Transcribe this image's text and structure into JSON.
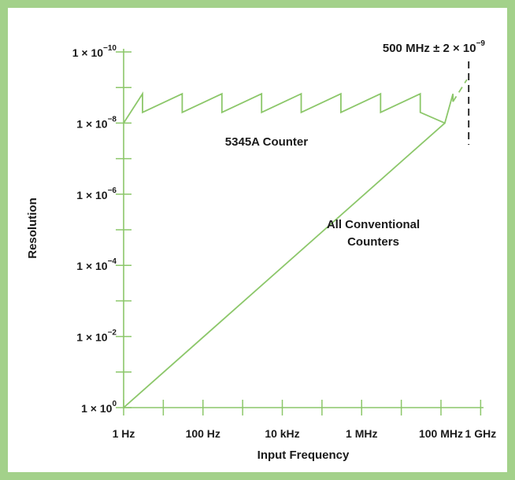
{
  "colors": {
    "frame": "#a3d18a",
    "plot_line": "#8cc76a",
    "text": "#1a1a1a",
    "marker": "#1a1a1a"
  },
  "chart_data": {
    "type": "line",
    "title": "",
    "xlabel": "Input Frequency",
    "ylabel": "Resolution",
    "x_scale": "log",
    "y_scale": "log",
    "y_inverted": true,
    "xlim": [
      1,
      1000000000
    ],
    "ylim": [
      1,
      1e-10
    ],
    "grid": false,
    "x_ticks": [
      {
        "value": 1,
        "label": "1 Hz"
      },
      {
        "value": 100,
        "label": "100 Hz"
      },
      {
        "value": 10000,
        "label": "10 kHz"
      },
      {
        "value": 1000000,
        "label": "1 MHz"
      },
      {
        "value": 100000000,
        "label": "100 MHz"
      },
      {
        "value": 1000000000,
        "label": "1 GHz"
      }
    ],
    "y_ticks": [
      {
        "value": 1,
        "mant": "1 × 10",
        "exp": "0"
      },
      {
        "value": 0.01,
        "mant": "1 × 10",
        "exp": "−2"
      },
      {
        "value": 0.0001,
        "mant": "1 × 10",
        "exp": "−4"
      },
      {
        "value": 1e-06,
        "mant": "1 × 10",
        "exp": "−6"
      },
      {
        "value": 1e-08,
        "mant": "1 × 10",
        "exp": "−8"
      },
      {
        "value": 1e-10,
        "mant": "1 × 10",
        "exp": "−10"
      }
    ],
    "series": [
      {
        "name": "5345A Counter",
        "points": [
          {
            "x": 1,
            "y": 1e-08
          },
          {
            "x": 3,
            "y": 1.5e-09
          },
          {
            "x": 3,
            "y": 5e-09
          },
          {
            "x": 30,
            "y": 1.5e-09
          },
          {
            "x": 30,
            "y": 5e-09
          },
          {
            "x": 300,
            "y": 1.5e-09
          },
          {
            "x": 300,
            "y": 5e-09
          },
          {
            "x": 3000,
            "y": 1.5e-09
          },
          {
            "x": 3000,
            "y": 5e-09
          },
          {
            "x": 30000,
            "y": 1.5e-09
          },
          {
            "x": 30000,
            "y": 5e-09
          },
          {
            "x": 300000,
            "y": 1.5e-09
          },
          {
            "x": 300000,
            "y": 5e-09
          },
          {
            "x": 3000000,
            "y": 1.5e-09
          },
          {
            "x": 3000000,
            "y": 5e-09
          },
          {
            "x": 30000000,
            "y": 1.5e-09
          },
          {
            "x": 30000000,
            "y": 5e-09
          },
          {
            "x": 125000000,
            "y": 1e-08
          },
          {
            "x": 200000000,
            "y": 1.5e-09
          },
          {
            "x": 200000000,
            "y": 2.5e-09
          }
        ],
        "dashed_extension": [
          {
            "x": 200000000,
            "y": 2.5e-09
          },
          {
            "x": 450000000,
            "y": 6e-10
          }
        ]
      },
      {
        "name": "All Conventional Counters",
        "points": [
          {
            "x": 1,
            "y": 1
          },
          {
            "x": 125000000,
            "y": 1e-08
          }
        ]
      }
    ],
    "annotations": [
      {
        "text": "5345A Counter",
        "x": 4000,
        "y": 3e-08
      },
      {
        "text": "All Conventional Counters",
        "line1": "All Conventional",
        "line2": "Counters",
        "x": 500000,
        "y": 3e-06
      },
      {
        "text": "500 MHz ± 2 × 10−9",
        "base": "500 MHz  ±  2 × 10",
        "exp": "−9",
        "x": 500000000
      }
    ]
  }
}
